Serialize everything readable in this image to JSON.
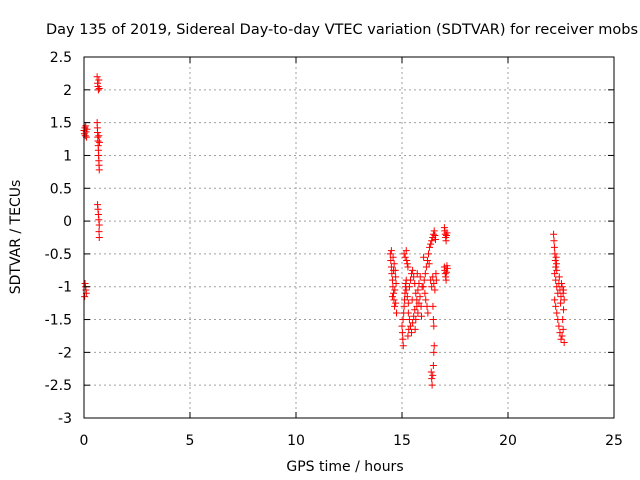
{
  "chart_data": {
    "type": "scatter",
    "title": "Day 135 of 2019, Sidereal Day-to-day VTEC variation (SDTVAR) for receiver mobs",
    "xlabel": "GPS time / hours",
    "ylabel": "SDTVAR / TECUs",
    "xlim": [
      0,
      25
    ],
    "ylim": [
      -3,
      2.5
    ],
    "xticks": [
      0,
      5,
      10,
      15,
      20,
      25
    ],
    "xtick_labels": [
      "0",
      "5",
      "10",
      "15",
      "20",
      "25"
    ],
    "yticks": [
      2.5,
      2,
      1.5,
      1,
      0.5,
      0,
      -0.5,
      -1,
      -1.5,
      -2,
      -2.5,
      -3
    ],
    "ytick_labels": [
      "2.5",
      "2",
      "1.5",
      "1",
      "0.5",
      "0",
      "-0.5",
      "-1",
      "-1.5",
      "-2",
      "-2.5",
      "-3"
    ],
    "grid": true,
    "marker": "+",
    "color": "#ff0000",
    "series": [
      {
        "name": "SDTVAR",
        "points": [
          [
            0.0,
            1.38
          ],
          [
            0.02,
            1.33
          ],
          [
            0.04,
            1.42
          ],
          [
            0.06,
            1.3
          ],
          [
            0.08,
            1.45
          ],
          [
            0.1,
            1.36
          ],
          [
            0.12,
            1.28
          ],
          [
            0.14,
            1.4
          ],
          [
            0.05,
            -0.95
          ],
          [
            0.07,
            -1.0
          ],
          [
            0.09,
            -1.05
          ],
          [
            0.11,
            -1.1
          ],
          [
            0.03,
            -1.15
          ],
          [
            0.62,
            2.2
          ],
          [
            0.64,
            2.1
          ],
          [
            0.66,
            2.05
          ],
          [
            0.68,
            2.0
          ],
          [
            0.7,
            2.15
          ],
          [
            0.72,
            2.02
          ],
          [
            0.62,
            1.5
          ],
          [
            0.63,
            1.42
          ],
          [
            0.64,
            1.35
          ],
          [
            0.65,
            1.28
          ],
          [
            0.66,
            1.22
          ],
          [
            0.67,
            1.15
          ],
          [
            0.68,
            1.08
          ],
          [
            0.69,
            1.0
          ],
          [
            0.7,
            0.92
          ],
          [
            0.71,
            0.85
          ],
          [
            0.72,
            0.78
          ],
          [
            0.7,
            1.3
          ],
          [
            0.73,
            1.2
          ],
          [
            0.64,
            0.25
          ],
          [
            0.66,
            0.18
          ],
          [
            0.68,
            0.1
          ],
          [
            0.7,
            0.02
          ],
          [
            0.72,
            -0.06
          ],
          [
            0.71,
            -0.16
          ],
          [
            0.72,
            -0.25
          ],
          [
            14.45,
            -0.5
          ],
          [
            14.47,
            -0.6
          ],
          [
            14.5,
            -0.7
          ],
          [
            14.52,
            -0.8
          ],
          [
            14.55,
            -0.9
          ],
          [
            14.57,
            -1.0
          ],
          [
            14.6,
            -1.1
          ],
          [
            14.62,
            -1.2
          ],
          [
            14.65,
            -1.3
          ],
          [
            14.58,
            -0.55
          ],
          [
            14.63,
            -0.65
          ],
          [
            14.68,
            -0.75
          ],
          [
            14.7,
            -0.85
          ],
          [
            14.72,
            -0.95
          ],
          [
            14.66,
            -1.05
          ],
          [
            14.74,
            -1.4
          ],
          [
            14.5,
            -0.45
          ],
          [
            14.55,
            -1.15
          ],
          [
            14.6,
            -0.75
          ],
          [
            14.7,
            -1.25
          ],
          [
            15.0,
            -1.6
          ],
          [
            15.02,
            -1.7
          ],
          [
            15.04,
            -1.8
          ],
          [
            15.06,
            -1.9
          ],
          [
            15.05,
            -1.5
          ],
          [
            15.08,
            -1.4
          ],
          [
            15.1,
            -1.3
          ],
          [
            15.12,
            -1.2
          ],
          [
            15.14,
            -1.1
          ],
          [
            15.16,
            -1.0
          ],
          [
            15.18,
            -0.95
          ],
          [
            15.2,
            -0.9
          ],
          [
            15.1,
            -0.5
          ],
          [
            15.15,
            -0.55
          ],
          [
            15.2,
            -0.45
          ],
          [
            15.22,
            -0.6
          ],
          [
            15.25,
            -0.65
          ],
          [
            15.28,
            -0.7
          ],
          [
            15.2,
            -1.05
          ],
          [
            15.25,
            -1.15
          ],
          [
            15.3,
            -1.25
          ],
          [
            15.35,
            -1.0
          ],
          [
            15.4,
            -0.9
          ],
          [
            15.45,
            -0.8
          ],
          [
            15.5,
            -0.75
          ],
          [
            15.55,
            -0.85
          ],
          [
            15.6,
            -0.95
          ],
          [
            15.65,
            -1.1
          ],
          [
            15.7,
            -1.2
          ],
          [
            15.75,
            -1.05
          ],
          [
            15.8,
            -0.95
          ],
          [
            15.85,
            -1.15
          ],
          [
            15.9,
            -1.3
          ],
          [
            15.95,
            -1.0
          ],
          [
            15.3,
            -1.4
          ],
          [
            15.35,
            -1.5
          ],
          [
            15.4,
            -1.6
          ],
          [
            15.45,
            -1.7
          ],
          [
            15.5,
            -1.55
          ],
          [
            15.55,
            -1.45
          ],
          [
            15.6,
            -1.35
          ],
          [
            15.65,
            -1.5
          ],
          [
            15.7,
            -1.3
          ],
          [
            15.75,
            -1.4
          ],
          [
            15.8,
            -1.25
          ],
          [
            15.28,
            -1.75
          ],
          [
            15.32,
            -1.65
          ],
          [
            15.48,
            -1.2
          ],
          [
            15.62,
            -1.65
          ],
          [
            15.72,
            -0.8
          ],
          [
            15.86,
            -0.85
          ],
          [
            15.92,
            -1.45
          ],
          [
            16.0,
            -1.0
          ],
          [
            16.05,
            -0.9
          ],
          [
            16.1,
            -0.8
          ],
          [
            16.15,
            -0.7
          ],
          [
            16.2,
            -0.6
          ],
          [
            16.25,
            -0.5
          ],
          [
            16.08,
            -1.1
          ],
          [
            16.12,
            -1.2
          ],
          [
            16.18,
            -1.3
          ],
          [
            16.22,
            -1.4
          ],
          [
            16.02,
            -0.55
          ],
          [
            16.28,
            -0.65
          ],
          [
            16.3,
            -0.4
          ],
          [
            16.35,
            -0.35
          ],
          [
            16.4,
            -0.3
          ],
          [
            16.45,
            -0.25
          ],
          [
            16.48,
            -0.2
          ],
          [
            16.52,
            -0.15
          ],
          [
            16.55,
            -0.22
          ],
          [
            16.58,
            -0.28
          ],
          [
            16.35,
            -0.9
          ],
          [
            16.4,
            -1.0
          ],
          [
            16.45,
            -0.85
          ],
          [
            16.5,
            -0.95
          ],
          [
            16.55,
            -1.05
          ],
          [
            16.6,
            -0.8
          ],
          [
            16.62,
            -0.9
          ],
          [
            16.38,
            -2.3
          ],
          [
            16.4,
            -2.4
          ],
          [
            16.42,
            -2.5
          ],
          [
            16.45,
            -2.35
          ],
          [
            16.48,
            -2.2
          ],
          [
            16.5,
            -2.0
          ],
          [
            16.52,
            -1.9
          ],
          [
            16.5,
            -1.6
          ],
          [
            16.48,
            -1.5
          ],
          [
            16.46,
            -1.3
          ],
          [
            17.0,
            -0.1
          ],
          [
            17.02,
            -0.15
          ],
          [
            17.04,
            -0.2
          ],
          [
            17.06,
            -0.25
          ],
          [
            17.08,
            -0.3
          ],
          [
            17.1,
            -0.22
          ],
          [
            17.12,
            -0.18
          ],
          [
            17.0,
            -0.7
          ],
          [
            17.02,
            -0.75
          ],
          [
            17.04,
            -0.8
          ],
          [
            17.06,
            -0.85
          ],
          [
            17.08,
            -0.9
          ],
          [
            17.1,
            -0.78
          ],
          [
            17.12,
            -0.68
          ],
          [
            17.14,
            -0.72
          ],
          [
            22.15,
            -0.2
          ],
          [
            22.17,
            -0.3
          ],
          [
            22.19,
            -0.4
          ],
          [
            22.21,
            -0.5
          ],
          [
            22.23,
            -0.6
          ],
          [
            22.25,
            -0.7
          ],
          [
            22.27,
            -0.55
          ],
          [
            22.29,
            -0.65
          ],
          [
            22.2,
            -0.8
          ],
          [
            22.25,
            -0.9
          ],
          [
            22.3,
            -1.0
          ],
          [
            22.35,
            -1.1
          ],
          [
            22.4,
            -0.95
          ],
          [
            22.45,
            -1.05
          ],
          [
            22.5,
            -1.15
          ],
          [
            22.55,
            -1.0
          ],
          [
            22.6,
            -1.1
          ],
          [
            22.65,
            -1.2
          ],
          [
            22.3,
            -0.75
          ],
          [
            22.42,
            -0.85
          ],
          [
            22.52,
            -0.95
          ],
          [
            22.62,
            -1.05
          ],
          [
            22.2,
            -1.2
          ],
          [
            22.25,
            -1.3
          ],
          [
            22.3,
            -1.4
          ],
          [
            22.35,
            -1.5
          ],
          [
            22.4,
            -1.6
          ],
          [
            22.45,
            -1.7
          ],
          [
            22.5,
            -1.8
          ],
          [
            22.55,
            -1.75
          ],
          [
            22.6,
            -1.65
          ],
          [
            22.65,
            -1.85
          ],
          [
            22.58,
            -1.5
          ],
          [
            22.62,
            -1.35
          ],
          [
            22.48,
            -1.25
          ]
        ]
      }
    ]
  }
}
